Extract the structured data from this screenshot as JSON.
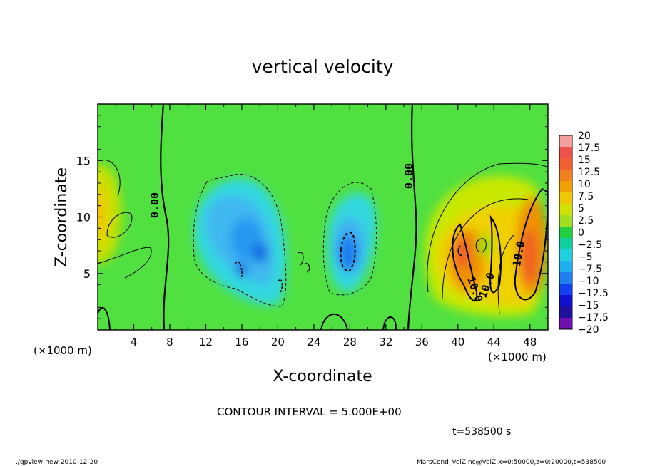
{
  "chart_data": {
    "type": "heatmap",
    "title": "vertical velocity",
    "xlabel": "X-coordinate",
    "ylabel": "Z-coordinate",
    "x_unit_left": "(×1000 m)",
    "x_unit_right": "(×1000 m)",
    "xlim": [
      0,
      50
    ],
    "ylim": [
      0,
      20
    ],
    "xticks": [
      4,
      8,
      12,
      16,
      20,
      24,
      28,
      32,
      36,
      40,
      44,
      48
    ],
    "xtick_labels": [
      "4",
      "8",
      "12",
      "16",
      "20",
      "24",
      "28",
      "32",
      "36",
      "40",
      "44",
      "48"
    ],
    "yticks": [
      5,
      10,
      15
    ],
    "ytick_labels": [
      "5",
      "10",
      "15"
    ],
    "colorbar": {
      "levels": [
        20,
        17.5,
        15,
        12.5,
        10,
        7.5,
        5,
        2.5,
        0,
        -2.5,
        -5,
        -7.5,
        -10,
        -12.5,
        -15,
        -17.5,
        -20
      ],
      "labels": [
        "20",
        "17.5",
        "15",
        "12.5",
        "10",
        "7.5",
        "5",
        "2.5",
        "0",
        "−2.5",
        "−5",
        "−7.5",
        "−10",
        "−12.5",
        "−15",
        "−17.5",
        "−20"
      ],
      "colors": [
        "#f5a0a0",
        "#f0504a",
        "#f06030",
        "#f08020",
        "#f0a000",
        "#f0c800",
        "#d0e000",
        "#a0e020",
        "#20d040",
        "#10d0a0",
        "#20d0e0",
        "#20b0f0",
        "#2080f0",
        "#1040f0",
        "#1010d0",
        "#2010a0",
        "#7010b0"
      ]
    },
    "features": [
      {
        "kind": "updraft",
        "x_range": [
          38,
          50
        ],
        "z_range": [
          2,
          14
        ],
        "max_value": 12.5
      },
      {
        "kind": "downdraft",
        "x_range": [
          11,
          22
        ],
        "z_range": [
          1,
          14
        ],
        "min_value": -10
      },
      {
        "kind": "downdraft",
        "x_range": [
          25,
          31
        ],
        "z_range": [
          4,
          12
        ],
        "min_value": -10
      }
    ],
    "contour_labels": [
      "0.00",
      "0.00",
      "10.0",
      "10.0",
      "10.0"
    ],
    "contour_interval_text": "CONTOUR INTERVAL = 5.000E+00",
    "time_text": "t=538500 s"
  },
  "footer": {
    "left": "./gpview-new   2010-12-20",
    "right": "MarsCond_VelZ.nc@VelZ,x=0:50000,z=0:20000,t=538500"
  }
}
